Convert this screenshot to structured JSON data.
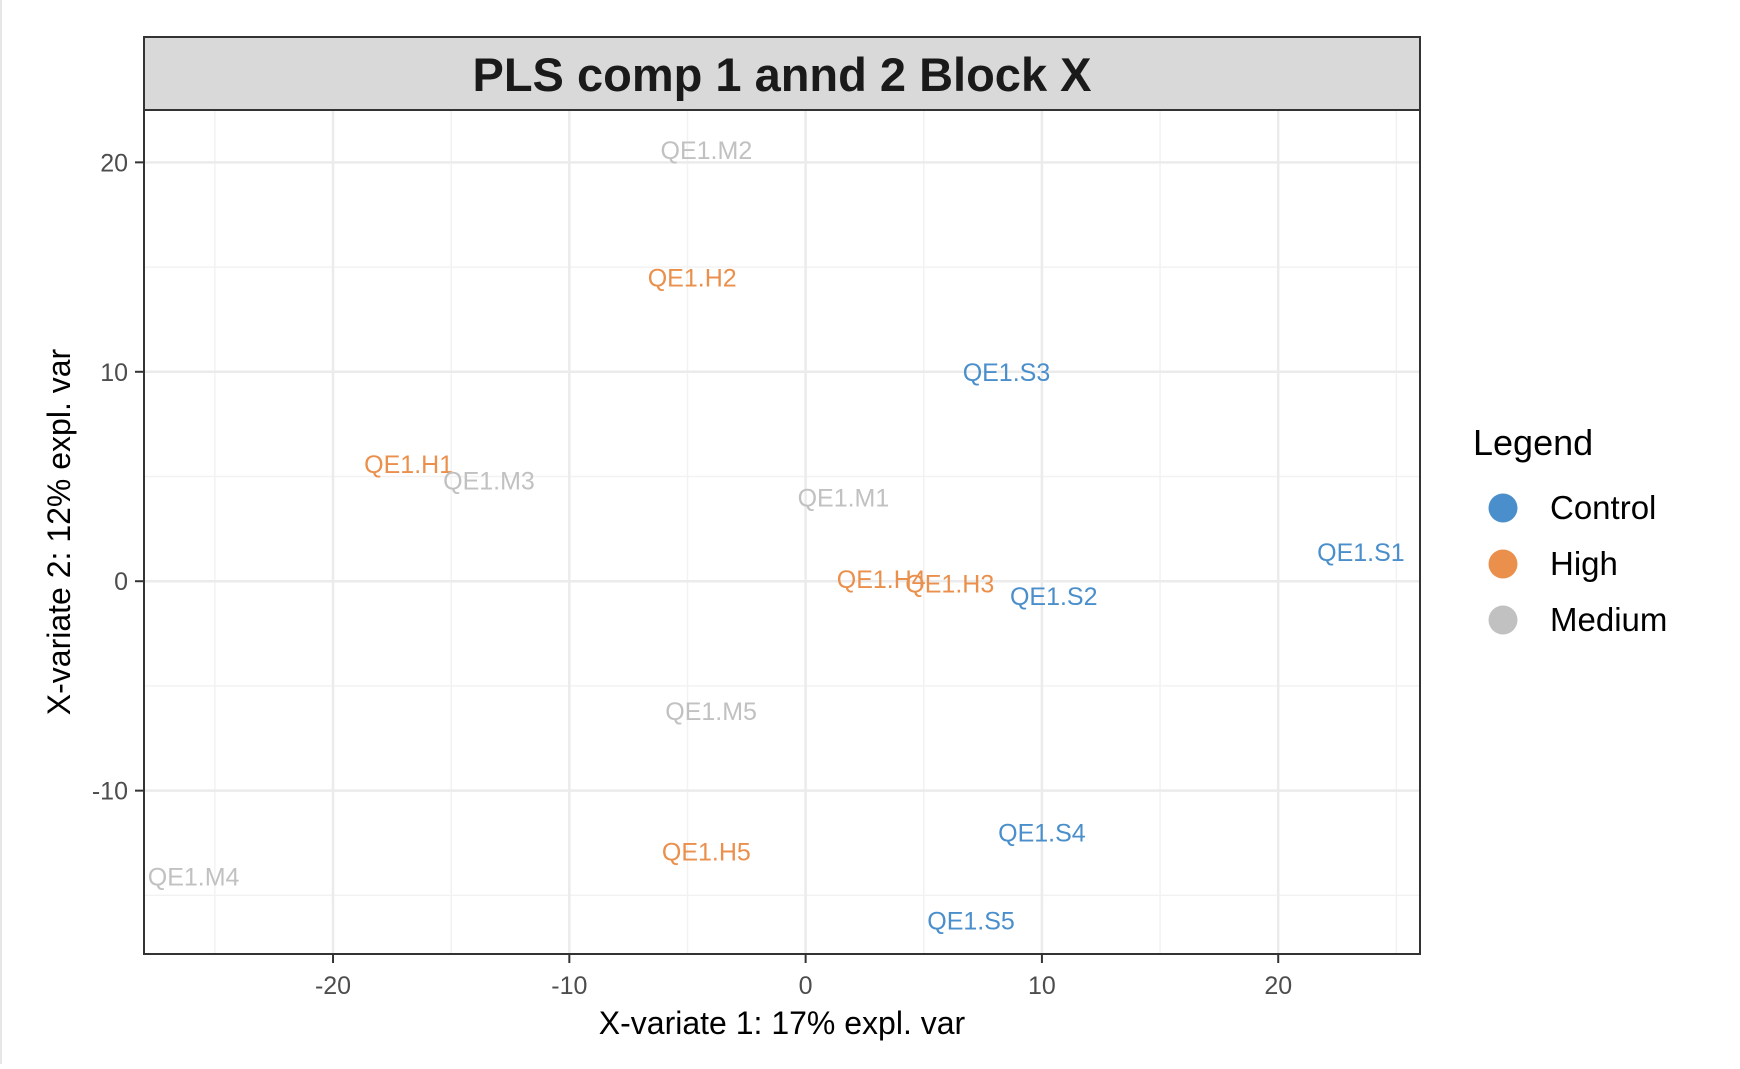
{
  "chart_data": {
    "type": "scatter",
    "title": "PLS comp 1 annd 2 Block X",
    "xlabel": "X-variate 1: 17% expl. var",
    "ylabel": "X-variate 2: 12% expl. var",
    "xlim": [
      -28,
      26
    ],
    "ylim": [
      -17.8,
      22.5
    ],
    "x_ticks": [
      -20,
      -10,
      0,
      10,
      20
    ],
    "y_ticks": [
      -10,
      0,
      10,
      20
    ],
    "x_tick_labels": [
      "-20",
      "-10",
      "0",
      "10",
      "20"
    ],
    "y_tick_labels": [
      "-10",
      "0",
      "10",
      "20"
    ],
    "grid": true,
    "legend_placement": "right",
    "legend": {
      "title": "Legend",
      "entries": [
        {
          "label": "Control",
          "color": "#4a8fcb"
        },
        {
          "label": "High",
          "color": "#ea904c"
        },
        {
          "label": "Medium",
          "color": "#c1c1c1"
        }
      ]
    },
    "series": [
      {
        "name": "Control",
        "color": "#4a8fcb",
        "points": [
          {
            "label": "QE1.S1",
            "x": 23.5,
            "y": 1.4
          },
          {
            "label": "QE1.S2",
            "x": 10.5,
            "y": -0.7
          },
          {
            "label": "QE1.S3",
            "x": 8.5,
            "y": 10.0
          },
          {
            "label": "QE1.S4",
            "x": 10.0,
            "y": -12.0
          },
          {
            "label": "QE1.S5",
            "x": 7.0,
            "y": -16.2
          }
        ]
      },
      {
        "name": "High",
        "color": "#ea904c",
        "points": [
          {
            "label": "QE1.H1",
            "x": -16.8,
            "y": 5.6
          },
          {
            "label": "QE1.H2",
            "x": -4.8,
            "y": 14.5
          },
          {
            "label": "QE1.H3",
            "x": 6.1,
            "y": -0.1
          },
          {
            "label": "QE1.H4",
            "x": 3.2,
            "y": 0.1
          },
          {
            "label": "QE1.H5",
            "x": -4.2,
            "y": -12.9
          }
        ]
      },
      {
        "name": "Medium",
        "color": "#c1c1c1",
        "points": [
          {
            "label": "QE1.M1",
            "x": 1.6,
            "y": 4.0
          },
          {
            "label": "QE1.M2",
            "x": -4.2,
            "y": 20.6
          },
          {
            "label": "QE1.M3",
            "x": -13.4,
            "y": 4.8
          },
          {
            "label": "QE1.M4",
            "x": -25.9,
            "y": -14.1
          },
          {
            "label": "QE1.M5",
            "x": -4.0,
            "y": -6.2
          }
        ]
      }
    ]
  }
}
